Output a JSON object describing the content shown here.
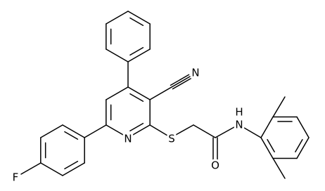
{
  "labels": {
    "nitrile_n": "N",
    "pyridine_n": "N",
    "sulfur": "S",
    "amide_h": "H",
    "amide_n": "N",
    "oxygen": "O",
    "fluorine": "F"
  }
}
